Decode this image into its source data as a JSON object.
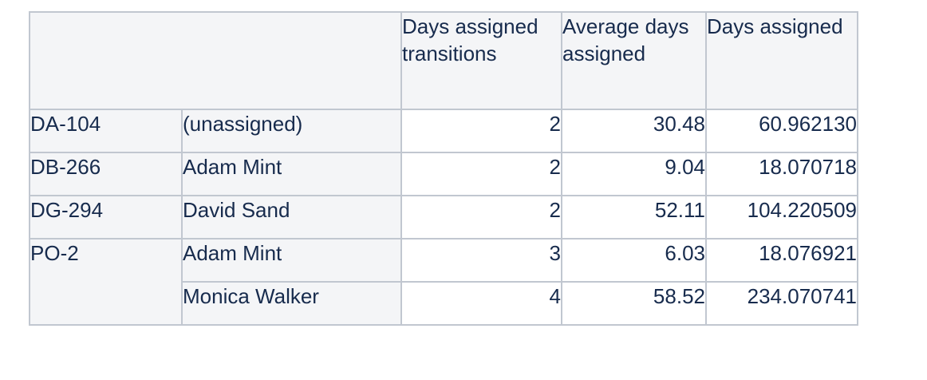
{
  "table": {
    "headers": [
      "Days assigned transitions",
      "Average days assigned",
      "Days assigned"
    ],
    "rows": [
      {
        "key": "DA-104",
        "assignee": "(unassigned)",
        "transitions": "2",
        "avg_days": "30.48",
        "days": "60.962130"
      },
      {
        "key": "DB-266",
        "assignee": "Adam Mint",
        "transitions": "2",
        "avg_days": "9.04",
        "days": "18.070718"
      },
      {
        "key": "DG-294",
        "assignee": "David Sand",
        "transitions": "2",
        "avg_days": "52.11",
        "days": "104.220509"
      },
      {
        "key": "PO-2",
        "assignee": "Adam Mint",
        "transitions": "3",
        "avg_days": "6.03",
        "days": "18.076921"
      },
      {
        "key": "",
        "assignee": "Monica Walker",
        "transitions": "4",
        "avg_days": "58.52",
        "days": "234.070741"
      }
    ]
  }
}
